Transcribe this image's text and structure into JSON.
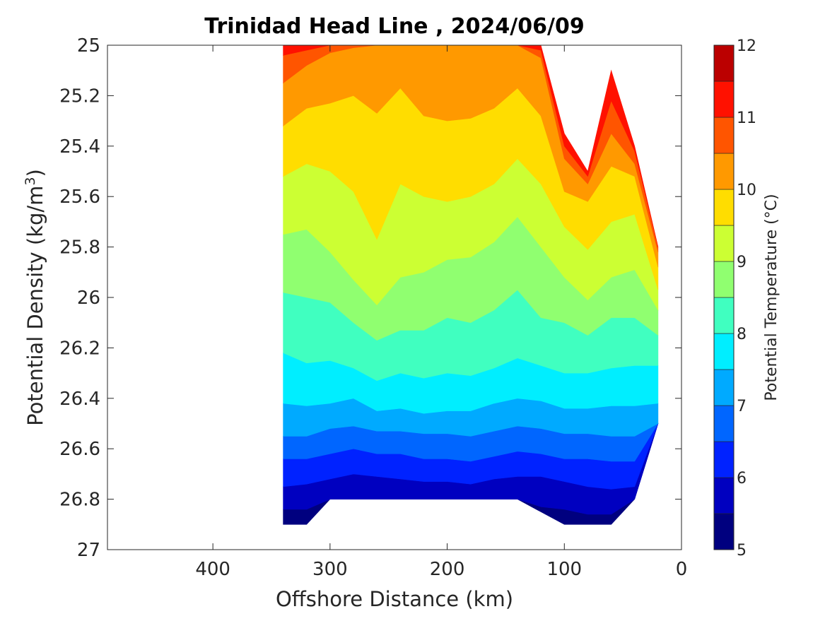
{
  "chart_data": {
    "type": "contour",
    "title": "Trinidad Head Line , 2024/06/09",
    "xlabel": "Offshore Distance (km)",
    "ylabel_main": "Potential Density (kg/m",
    "ylabel_sup": "3",
    "ylabel_close": ")",
    "xlim": [
      490,
      0
    ],
    "ylim": [
      25,
      27
    ],
    "x_reversed": true,
    "y_reversed": true,
    "xticks": [
      400,
      300,
      200,
      100,
      0
    ],
    "xtick_labels": [
      "400",
      "300",
      "200",
      "100",
      "0"
    ],
    "yticks": [
      25,
      25.2,
      25.4,
      25.6,
      25.8,
      26,
      26.2,
      26.4,
      26.6,
      26.8,
      27
    ],
    "ytick_labels": [
      "25",
      "25.2",
      "25.4",
      "25.6",
      "25.8",
      "26",
      "26.2",
      "26.4",
      "26.6",
      "26.8",
      "27"
    ],
    "grid": false,
    "colorbar": {
      "label": "Potential Temperature (°C)",
      "range": [
        5,
        12
      ],
      "ticks": [
        5,
        6,
        7,
        8,
        9,
        10,
        11,
        12
      ],
      "tick_labels": [
        "5",
        "6",
        "7",
        "8",
        "9",
        "10",
        "11",
        "12"
      ],
      "levels": [
        5,
        5.5,
        6,
        6.5,
        7,
        7.5,
        8,
        8.5,
        9,
        9.5,
        10,
        10.5,
        11,
        11.5,
        12
      ],
      "colors": [
        "#00007f",
        "#0000c0",
        "#0022ff",
        "#0066ff",
        "#00aaff",
        "#00eeff",
        "#40ffc0",
        "#90ff70",
        "#ccff33",
        "#ffdd00",
        "#ff9900",
        "#ff5500",
        "#ff1100",
        "#bb0000"
      ]
    },
    "data_x": [
      340,
      320,
      300,
      280,
      260,
      240,
      220,
      200,
      180,
      160,
      140,
      120,
      100,
      80,
      60,
      40,
      20
    ],
    "data_top": [
      25.0,
      25.0,
      25.0,
      25.0,
      25.0,
      25.0,
      25.0,
      25.0,
      25.0,
      25.0,
      25.0,
      25.0,
      25.35,
      25.5,
      25.1,
      25.4,
      25.8
    ],
    "data_bottom": [
      26.9,
      26.9,
      26.8,
      26.8,
      26.8,
      26.8,
      26.8,
      26.8,
      26.8,
      26.8,
      26.8,
      26.85,
      26.9,
      26.9,
      26.9,
      26.8,
      26.5
    ],
    "isotherms": [
      {
        "value": 5.5,
        "depth": [
          26.84,
          26.84,
          26.82,
          26.82,
          26.82,
          26.81,
          26.81,
          26.81,
          26.81,
          26.8,
          26.8,
          26.83,
          26.84,
          26.86,
          26.86,
          26.9,
          26.9
        ]
      },
      {
        "value": 6.0,
        "depth": [
          26.75,
          26.74,
          26.72,
          26.7,
          26.71,
          26.72,
          26.73,
          26.73,
          26.74,
          26.72,
          26.71,
          26.71,
          26.73,
          26.75,
          26.76,
          26.75,
          26.7
        ]
      },
      {
        "value": 6.5,
        "depth": [
          26.64,
          26.64,
          26.62,
          26.6,
          26.62,
          26.62,
          26.64,
          26.64,
          26.65,
          26.63,
          26.61,
          26.62,
          26.64,
          26.64,
          26.65,
          26.65,
          26.6
        ]
      },
      {
        "value": 7.0,
        "depth": [
          26.55,
          26.55,
          26.52,
          26.51,
          26.53,
          26.53,
          26.54,
          26.54,
          26.55,
          26.53,
          26.51,
          26.52,
          26.54,
          26.54,
          26.55,
          26.55,
          26.5
        ]
      },
      {
        "value": 7.5,
        "depth": [
          26.42,
          26.43,
          26.42,
          26.4,
          26.45,
          26.44,
          26.46,
          26.45,
          26.45,
          26.42,
          26.4,
          26.41,
          26.44,
          26.44,
          26.43,
          26.43,
          26.42
        ]
      },
      {
        "value": 8.0,
        "depth": [
          26.22,
          26.26,
          26.25,
          26.28,
          26.33,
          26.3,
          26.32,
          26.3,
          26.31,
          26.28,
          26.24,
          26.27,
          26.3,
          26.3,
          26.28,
          26.27,
          26.27
        ]
      },
      {
        "value": 8.5,
        "depth": [
          25.98,
          26.0,
          26.02,
          26.1,
          26.17,
          26.13,
          26.13,
          26.08,
          26.1,
          26.05,
          25.97,
          26.08,
          26.1,
          26.15,
          26.08,
          26.08,
          26.15
        ]
      },
      {
        "value": 9.0,
        "depth": [
          25.75,
          25.73,
          25.82,
          25.93,
          26.03,
          25.92,
          25.9,
          25.85,
          25.84,
          25.78,
          25.68,
          25.8,
          25.92,
          26.01,
          25.92,
          25.89,
          26.05
        ]
      },
      {
        "value": 9.5,
        "depth": [
          25.52,
          25.47,
          25.5,
          25.58,
          25.77,
          25.55,
          25.6,
          25.62,
          25.6,
          25.55,
          25.45,
          25.55,
          25.72,
          25.81,
          25.7,
          25.67,
          25.97
        ]
      },
      {
        "value": 10.0,
        "depth": [
          25.32,
          25.25,
          25.23,
          25.2,
          25.27,
          25.17,
          25.28,
          25.3,
          25.29,
          25.25,
          25.17,
          25.28,
          25.58,
          25.62,
          25.48,
          25.52,
          25.88
        ]
      },
      {
        "value": 10.5,
        "depth": [
          25.15,
          25.08,
          25.03,
          25.01,
          25.0,
          25.0,
          25.0,
          25.0,
          25.0,
          25.0,
          25.0,
          25.05,
          25.45,
          25.55,
          25.35,
          25.47,
          25.82
        ]
      },
      {
        "value": 11.0,
        "depth": [
          25.04,
          25.02,
          25.0,
          25.0,
          25.0,
          25.0,
          25.0,
          25.0,
          25.0,
          25.0,
          25.0,
          25.02,
          25.4,
          25.52,
          25.22,
          25.42,
          25.8
        ]
      }
    ]
  }
}
